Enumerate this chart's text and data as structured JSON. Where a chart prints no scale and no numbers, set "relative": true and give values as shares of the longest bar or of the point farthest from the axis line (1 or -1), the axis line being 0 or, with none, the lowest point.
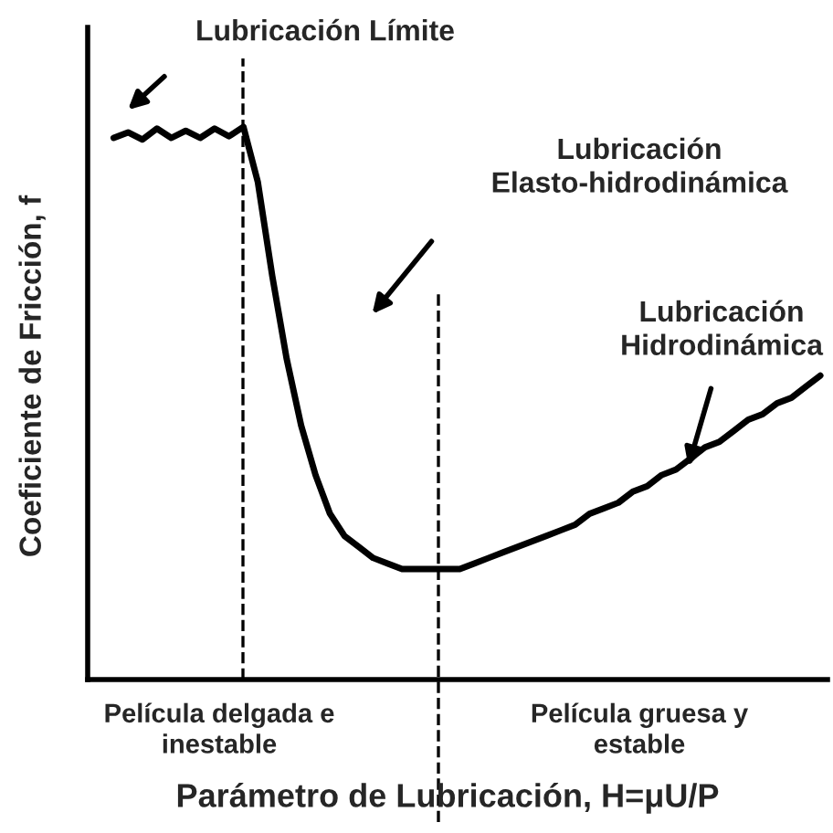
{
  "chart_data": {
    "type": "line",
    "relative": true,
    "xlabel": "Parámetro de Lubricación, H=μU/P",
    "ylabel": "Coeficiente de Fricción, f",
    "categories": [
      null,
      null,
      null,
      null,
      null,
      null,
      null,
      null,
      null,
      null,
      null,
      null,
      null,
      null,
      null,
      null,
      null,
      null,
      null,
      null,
      null,
      null,
      null,
      null,
      null,
      null,
      null,
      null,
      null,
      null,
      null,
      null,
      null,
      null,
      null,
      null,
      null,
      null,
      null,
      null,
      null,
      null,
      null,
      null,
      null,
      null,
      null,
      null,
      null,
      null
    ],
    "series": [
      {
        "color": "#000000",
        "values": [
          0.98,
          0.99,
          0.977,
          0.997,
          0.98,
          0.993,
          0.98,
          0.997,
          0.983,
          1.0,
          0.9,
          0.73,
          0.58,
          0.46,
          0.37,
          0.3,
          0.26,
          0.24,
          0.22,
          0.21,
          0.2,
          0.2,
          0.2,
          0.2,
          0.2,
          0.21,
          0.22,
          0.23,
          0.24,
          0.25,
          0.26,
          0.27,
          0.28,
          0.3,
          0.31,
          0.32,
          0.34,
          0.35,
          0.37,
          0.38,
          0.4,
          0.42,
          0.43,
          0.45,
          0.47,
          0.48,
          0.5,
          0.51,
          0.53,
          0.55
        ]
      }
    ],
    "annotations": [
      "Lubricación Límite",
      "Lubricación\nElasto-hidrodinámica",
      "Lubricación\nHidrodinámica",
      "Película delgada e\ninestable",
      "Película gruesa y\nestable"
    ],
    "legend": false,
    "marker": "none",
    "line_style": "solid"
  }
}
